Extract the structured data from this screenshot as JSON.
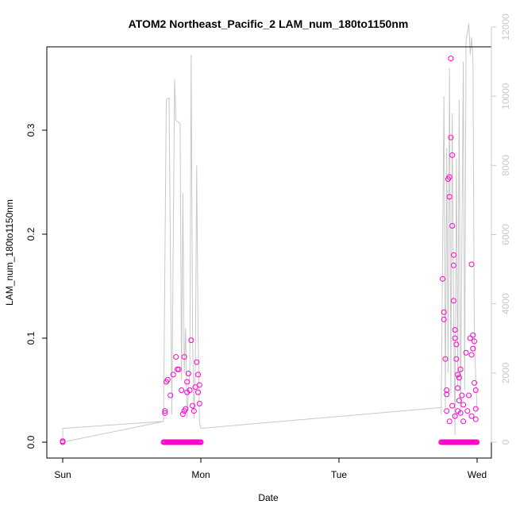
{
  "chart_data": {
    "type": "scatter",
    "title": "ATOM2 Northeast_Pacific_2 LAM_num_180to1150nm",
    "xlabel": "Date",
    "ylabel": "LAM_num_180to1150nm",
    "x_ticks": [
      "Sun",
      "Mon",
      "Tue",
      "Wed"
    ],
    "ylim": [
      0,
      0.35
    ],
    "y_ticks": [
      "0.0",
      "0.1",
      "0.2",
      "0.3"
    ],
    "y_tick_values": [
      0.0,
      0.1,
      0.2,
      0.3
    ],
    "y2lim": [
      0,
      12000
    ],
    "y2_ticks": [
      "0",
      "2000",
      "4000",
      "6000",
      "8000",
      "10000",
      "12000"
    ],
    "y2_tick_values": [
      0,
      2000,
      4000,
      6000,
      8000,
      10000,
      12000
    ],
    "point_color": "#ff00cc",
    "line_color": "#c8c8c8",
    "grid": false,
    "series": [
      {
        "values_day": [
          [
            0.0,
            0.0
          ],
          [
            0.0,
            0.001
          ],
          [
            0.74,
            0.028
          ],
          [
            0.74,
            0.03
          ],
          [
            0.75,
            0.058
          ],
          [
            0.76,
            0.06
          ],
          [
            0.78,
            0.045
          ],
          [
            0.8,
            0.065
          ],
          [
            0.82,
            0.082
          ],
          [
            0.83,
            0.07
          ],
          [
            0.84,
            0.07
          ],
          [
            0.86,
            0.05
          ],
          [
            0.87,
            0.027
          ],
          [
            0.88,
            0.03
          ],
          [
            0.88,
            0.082
          ],
          [
            0.89,
            0.032
          ],
          [
            0.9,
            0.048
          ],
          [
            0.9,
            0.058
          ],
          [
            0.91,
            0.066
          ],
          [
            0.92,
            0.05
          ],
          [
            0.93,
            0.098
          ],
          [
            0.94,
            0.035
          ],
          [
            0.95,
            0.03
          ],
          [
            0.96,
            0.053
          ],
          [
            0.97,
            0.077
          ],
          [
            0.98,
            0.065
          ],
          [
            0.98,
            0.048
          ],
          [
            0.99,
            0.055
          ],
          [
            0.99,
            0.037
          ],
          [
            2.75,
            0.157
          ],
          [
            2.76,
            0.125
          ],
          [
            2.76,
            0.118
          ],
          [
            2.77,
            0.08
          ],
          [
            2.78,
            0.05
          ],
          [
            2.78,
            0.046
          ],
          [
            2.79,
            0.253
          ],
          [
            2.8,
            0.255
          ],
          [
            2.8,
            0.236
          ],
          [
            2.81,
            0.293
          ],
          [
            2.81,
            0.369
          ],
          [
            2.82,
            0.276
          ],
          [
            2.82,
            0.208
          ],
          [
            2.83,
            0.18
          ],
          [
            2.83,
            0.17
          ],
          [
            2.83,
            0.136
          ],
          [
            2.84,
            0.108
          ],
          [
            2.84,
            0.1
          ],
          [
            2.85,
            0.094
          ],
          [
            2.85,
            0.08
          ],
          [
            2.86,
            0.065
          ],
          [
            2.86,
            0.052
          ],
          [
            2.87,
            0.04
          ],
          [
            2.87,
            0.062
          ],
          [
            2.88,
            0.07
          ],
          [
            2.89,
            0.045
          ],
          [
            2.9,
            0.036
          ],
          [
            2.92,
            0.086
          ],
          [
            2.93,
            0.03
          ],
          [
            2.95,
            0.1
          ],
          [
            2.96,
            0.171
          ],
          [
            2.96,
            0.084
          ],
          [
            2.97,
            0.09
          ],
          [
            2.97,
            0.103
          ],
          [
            2.98,
            0.097
          ],
          [
            2.98,
            0.057
          ],
          [
            2.99,
            0.05
          ],
          [
            2.99,
            0.032
          ],
          [
            2.99,
            0.022
          ],
          [
            2.78,
            0.03
          ],
          [
            2.8,
            0.02
          ],
          [
            2.82,
            0.035
          ],
          [
            2.84,
            0.025
          ],
          [
            2.86,
            0.03
          ],
          [
            2.88,
            0.028
          ],
          [
            2.9,
            0.02
          ],
          [
            2.94,
            0.045
          ],
          [
            2.96,
            0.025
          ]
        ],
        "zero_runs_day": [
          [
            0.73,
            1.0
          ],
          [
            2.74,
            3.0
          ]
        ]
      },
      {
        "values_day": [
          [
            0.0,
            0
          ],
          [
            0.0,
            400
          ],
          [
            0.73,
            600
          ],
          [
            0.75,
            9900
          ],
          [
            0.77,
            9950
          ],
          [
            0.79,
            800
          ],
          [
            0.81,
            10500
          ],
          [
            0.82,
            9300
          ],
          [
            0.85,
            9200
          ],
          [
            0.86,
            1800
          ],
          [
            0.87,
            7200
          ],
          [
            0.88,
            2000
          ],
          [
            0.89,
            3300
          ],
          [
            0.9,
            700
          ],
          [
            0.92,
            2100
          ],
          [
            0.93,
            11200
          ],
          [
            0.94,
            3000
          ],
          [
            0.95,
            700
          ],
          [
            0.96,
            2200
          ],
          [
            0.97,
            8000
          ],
          [
            0.98,
            3200
          ],
          [
            0.99,
            600
          ],
          [
            1.0,
            400
          ],
          [
            2.74,
            800
          ],
          [
            2.76,
            10000
          ],
          [
            2.77,
            1000
          ],
          [
            2.78,
            8500
          ],
          [
            2.79,
            2000
          ],
          [
            2.8,
            10800
          ],
          [
            2.81,
            1400
          ],
          [
            2.82,
            9500
          ],
          [
            2.83,
            3600
          ],
          [
            2.84,
            200
          ],
          [
            2.85,
            8200
          ],
          [
            2.86,
            1600
          ],
          [
            2.87,
            9900
          ],
          [
            2.88,
            800
          ],
          [
            2.9,
            11000
          ],
          [
            2.91,
            1500
          ],
          [
            2.92,
            11600
          ],
          [
            2.94,
            12100
          ],
          [
            2.95,
            11200
          ],
          [
            2.96,
            11700
          ],
          [
            2.97,
            11100
          ],
          [
            2.98,
            2900
          ],
          [
            2.99,
            1900
          ],
          [
            3.0,
            900
          ]
        ],
        "baseline_day": [
          [
            1.0,
            400
          ],
          [
            2.74,
            1000
          ]
        ]
      }
    ]
  }
}
